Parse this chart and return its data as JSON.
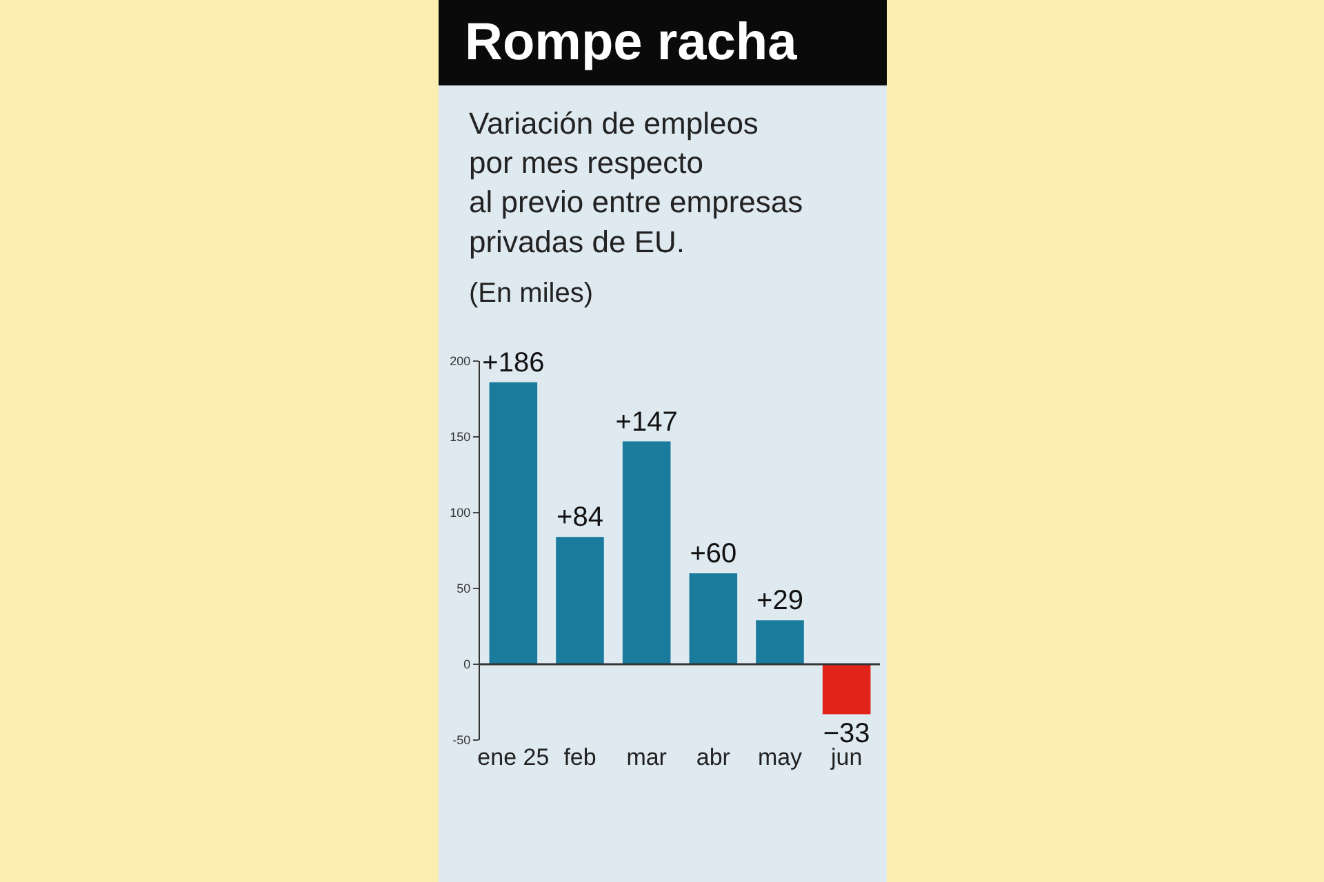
{
  "chart_data": {
    "type": "bar",
    "title": "Rompe racha",
    "subtitle": "Variación de empleos\npor mes respecto\nal previo entre empresas\nprivadas de EU.",
    "annotations": [
      "(En miles)"
    ],
    "categories": [
      "ene 25",
      "feb",
      "mar",
      "abr",
      "may",
      "jun"
    ],
    "values": [
      186,
      84,
      147,
      60,
      29,
      -33
    ],
    "colors": [
      "#1a7b9c",
      "#1a7b9c",
      "#1a7b9c",
      "#1a7b9c",
      "#1a7b9c",
      "#e2231a"
    ],
    "value_labels": [
      "+186",
      "+84",
      "+147",
      "+60",
      "+29",
      "−33"
    ],
    "ylim": [
      -50,
      200
    ],
    "yticks": [
      -50,
      0,
      50,
      100,
      150,
      200
    ],
    "legend": false
  }
}
